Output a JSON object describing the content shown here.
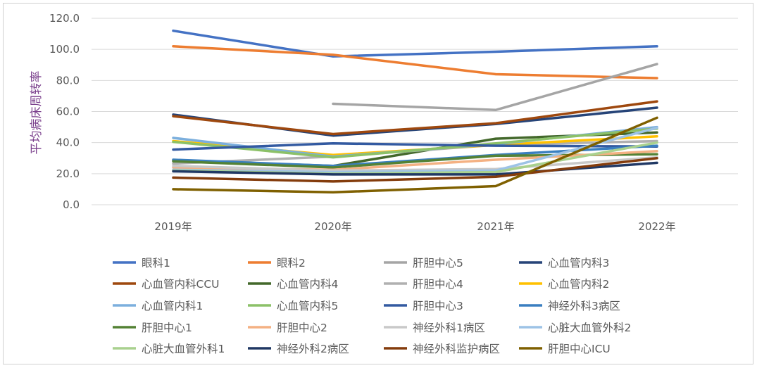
{
  "chart_data": {
    "type": "line",
    "title": "",
    "xlabel": "",
    "ylabel": "平均病床周转率",
    "categories": [
      "2019年",
      "2020年",
      "2021年",
      "2022年"
    ],
    "ylim": [
      0,
      120
    ],
    "yticks": [
      "0.0",
      "20.0",
      "40.0",
      "60.0",
      "80.0",
      "100.0",
      "120.0"
    ],
    "grid": true,
    "legend_position": "bottom",
    "series": [
      {
        "name": "眼科1",
        "color": "#4472C4",
        "values": [
          112,
          95.5,
          98.5,
          102
        ]
      },
      {
        "name": "眼科2",
        "color": "#ED7D31",
        "values": [
          102,
          96.5,
          84,
          81.5
        ]
      },
      {
        "name": "肝胆中心5",
        "color": "#A5A5A5",
        "values": [
          null,
          65,
          61,
          90.5
        ]
      },
      {
        "name": "心血管内科3",
        "color": "#264478",
        "values": [
          58,
          44.5,
          52,
          62.5
        ]
      },
      {
        "name": "心血管内科CCU",
        "color": "#9E480E",
        "values": [
          57,
          45.5,
          52.5,
          66.5
        ]
      },
      {
        "name": "心血管内科4",
        "color": "#43682B",
        "values": [
          28.5,
          25,
          42.5,
          46.5
        ]
      },
      {
        "name": "肝胆中心4",
        "color": "#B0B0B0",
        "values": [
          26.5,
          31,
          38.5,
          41
        ]
      },
      {
        "name": "心血管内科2",
        "color": "#FFC000",
        "values": [
          41,
          32,
          38.5,
          44
        ]
      },
      {
        "name": "心血管内科1",
        "color": "#7CAFDD",
        "values": [
          43,
          31,
          39,
          50
        ]
      },
      {
        "name": "心血管内科5",
        "color": "#8CC168",
        "values": [
          40.5,
          30.5,
          39.5,
          49
        ]
      },
      {
        "name": "肝胆中心3",
        "color": "#335AA1",
        "values": [
          35.5,
          39.5,
          38,
          37.5
        ]
      },
      {
        "name": "神经外科3病区",
        "color": "#3A7FC0",
        "values": [
          29,
          25,
          32,
          38
        ]
      },
      {
        "name": "肝胆中心1",
        "color": "#548235",
        "values": [
          28,
          24,
          31.5,
          32.5
        ]
      },
      {
        "name": "肝胆中心2",
        "color": "#F4B183",
        "values": [
          24,
          22.5,
          29,
          34.5
        ]
      },
      {
        "name": "神经外科1病区",
        "color": "#C9C9C9",
        "values": [
          25,
          22,
          23,
          30.5
        ]
      },
      {
        "name": "心脏大血管外科2",
        "color": "#9DC3E6",
        "values": [
          22.5,
          21,
          22,
          49.5
        ]
      },
      {
        "name": "心脏大血管外科1",
        "color": "#A9D18E",
        "values": [
          22,
          20,
          21,
          40
        ]
      },
      {
        "name": "神经外科2病区",
        "color": "#203864",
        "values": [
          21.5,
          19.5,
          19.5,
          27
        ]
      },
      {
        "name": "神经外科监护病区",
        "color": "#843C0C",
        "values": [
          17.5,
          15,
          18,
          30
        ]
      },
      {
        "name": "肝胆中心ICU",
        "color": "#7F6000",
        "values": [
          10,
          8,
          12,
          56
        ]
      }
    ]
  }
}
